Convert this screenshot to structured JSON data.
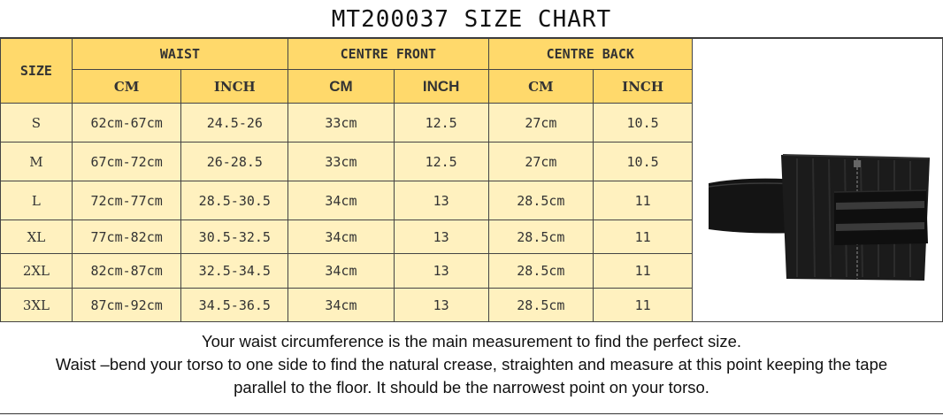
{
  "title": "MT200037 SIZE CHART",
  "headers": {
    "size": "SIZE",
    "groups": [
      "WAIST",
      "CENTRE FRONT",
      "CENTRE BACK"
    ],
    "units": [
      "CM",
      "INCH",
      "CM",
      "INCH",
      "CM",
      "INCH"
    ]
  },
  "rows": [
    {
      "size": "S",
      "cells": [
        "62cm-67cm",
        "24.5-26",
        "33cm",
        "12.5",
        "27cm",
        "10.5"
      ]
    },
    {
      "size": "M",
      "cells": [
        "67cm-72cm",
        "26-28.5",
        "33cm",
        "12.5",
        "27cm",
        "10.5"
      ]
    },
    {
      "size": "L",
      "cells": [
        "72cm-77cm",
        "28.5-30.5",
        "34cm",
        "13",
        "28.5cm",
        "11"
      ]
    },
    {
      "size": "XL",
      "cells": [
        "77cm-82cm",
        "30.5-32.5",
        "34cm",
        "13",
        "28.5cm",
        "11"
      ]
    },
    {
      "size": "2XL",
      "cells": [
        "82cm-87cm",
        "32.5-34.5",
        "34cm",
        "13",
        "28.5cm",
        "11"
      ]
    },
    {
      "size": "3XL",
      "cells": [
        "87cm-92cm",
        "34.5-36.5",
        "34cm",
        "13",
        "28.5cm",
        "11"
      ]
    }
  ],
  "product_image": {
    "icon": "waist-trainer-image"
  },
  "footer": {
    "line1": "Your waist circumference is the main measurement to find the perfect size.",
    "line2": "Waist –bend your torso to one side to find the natural crease, straighten and measure at this point keeping the tape",
    "line3": "parallel to the floor. It should be the narrowest point on your torso."
  },
  "colors": {
    "header": "#ffd96b",
    "body": "#fff1bf"
  }
}
